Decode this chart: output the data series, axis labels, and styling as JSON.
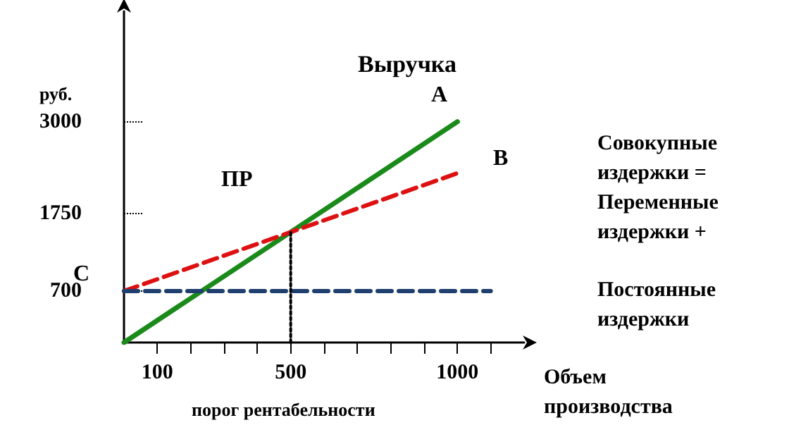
{
  "chart_data": {
    "type": "line",
    "xlabel": "Объем производства",
    "ylabel": "руб.",
    "xlim": [
      0,
      1200
    ],
    "ylim": [
      0,
      4500
    ],
    "xticks": [
      100,
      {
        "value": 200,
        "label": null
      },
      {
        "value": 300,
        "label": null
      },
      {
        "value": 400,
        "label": null
      },
      500,
      {
        "value": 600,
        "label": null
      },
      {
        "value": 700,
        "label": null
      },
      {
        "value": 800,
        "label": null
      },
      {
        "value": 900,
        "label": null
      },
      1000,
      {
        "value": 1100,
        "label": null
      }
    ],
    "yticks": [
      700,
      1750,
      3000
    ],
    "series": [
      {
        "type": "line",
        "color": "#1a8a1a",
        "x": [
          0,
          1000
        ],
        "values": [
          0,
          3000
        ],
        "line_style": "solid"
      },
      {
        "type": "line",
        "color": "#dd1111",
        "x": [
          0,
          1000
        ],
        "values": [
          700,
          2300
        ],
        "line_style": "dashed"
      },
      {
        "type": "line",
        "color": "#1f3f6f",
        "x": [
          0,
          1100
        ],
        "values": [
          700,
          700
        ],
        "line_style": "dashed"
      },
      {
        "type": "line",
        "color": "#000000",
        "x": [
          500,
          500
        ],
        "values": [
          0,
          1500
        ],
        "line_style": "dotted"
      }
    ],
    "annotations": [
      "порог рентабельности",
      "Совокупные издержки = Переменные издержки +",
      "Постоянные издержки",
      "Выручка",
      "A",
      "B",
      "C",
      "ПР"
    ],
    "grid": false,
    "marker": "none"
  }
}
